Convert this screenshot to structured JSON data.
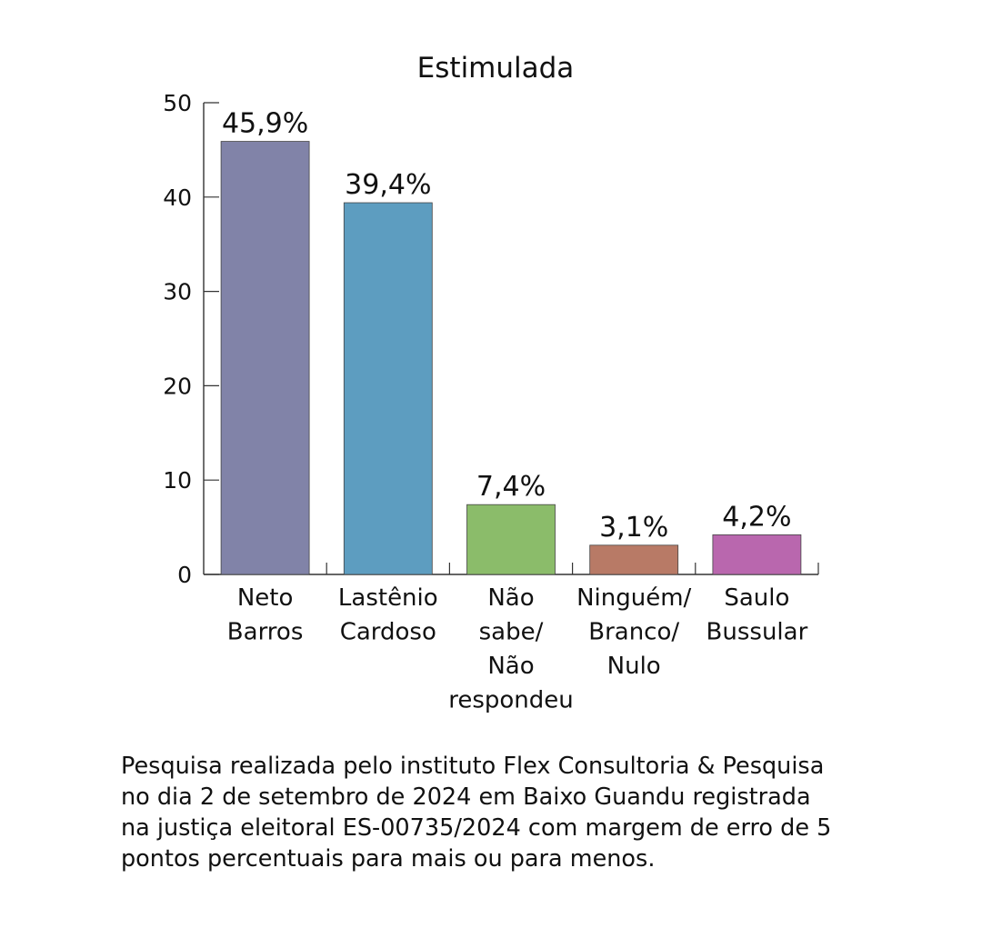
{
  "chart_data": {
    "type": "bar",
    "title": "Estimulada",
    "categories": [
      [
        "Neto",
        "Barros"
      ],
      [
        "Lastênio",
        "Cardoso"
      ],
      [
        "Não",
        "sabe/",
        "Não",
        "respondeu"
      ],
      [
        "Ninguém/",
        "Branco/",
        "Nulo"
      ],
      [
        "Saulo",
        "Bussular"
      ]
    ],
    "values": [
      45.9,
      39.4,
      7.4,
      3.1,
      4.2
    ],
    "value_labels": [
      "45,9%",
      "39,4%",
      "7,4%",
      "3,1%",
      "4,2%"
    ],
    "colors": [
      "#8183a8",
      "#5d9dc0",
      "#8bbc6a",
      "#b87a66",
      "#b967ae"
    ],
    "ylim": [
      0,
      50
    ],
    "yticks": [
      0,
      10,
      20,
      30,
      40,
      50
    ],
    "xlabel": "",
    "ylabel": "",
    "grid": false,
    "legend": "none"
  },
  "footnote": "Pesquisa realizada pelo instituto Flex Consultoria & Pesquisa\nno dia 2 de setembro de 2024 em Baixo Guandu registrada\nna justiça eleitoral ES-00735/2024 com margem de erro de 5\npontos percentuais para mais ou para menos."
}
